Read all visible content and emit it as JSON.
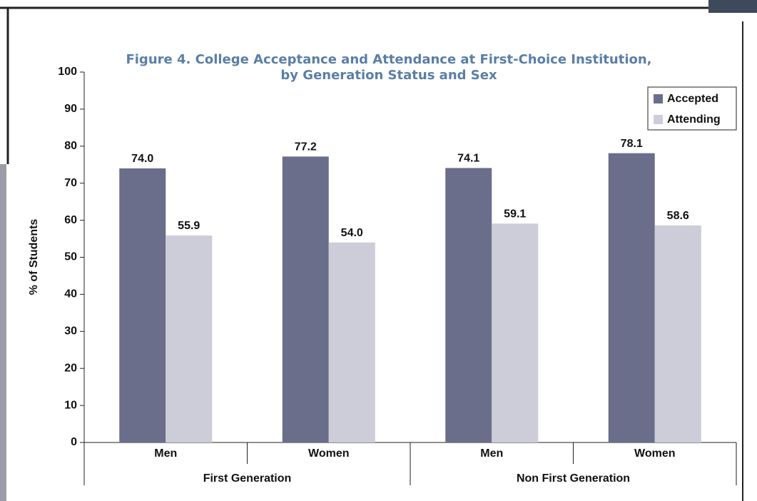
{
  "chart_data": {
    "type": "bar",
    "title": [
      "Figure 4. College Acceptance and Attendance at First-Choice Institution,",
      "by Generation Status and Sex"
    ],
    "ylabel": "% of Students",
    "categories": [
      "Men",
      "Women",
      "Men",
      "Women"
    ],
    "groups": [
      "First Generation",
      "Non First Generation"
    ],
    "series": [
      {
        "name": "Accepted",
        "color": "#6b6e8a",
        "values": [
          74.0,
          77.2,
          74.1,
          78.1
        ],
        "value_labels": [
          "74.0",
          "77.2",
          "74.1",
          "78.1"
        ]
      },
      {
        "name": "Attending",
        "color": "#cdcdd9",
        "values": [
          55.9,
          54.0,
          59.1,
          58.6
        ],
        "value_labels": [
          "55.9",
          "54.0",
          "59.1",
          "58.6"
        ]
      }
    ],
    "ylim": [
      0,
      100
    ],
    "yticks": [
      0,
      10,
      20,
      30,
      40,
      50,
      60,
      70,
      80,
      90,
      100
    ],
    "grid": false,
    "legend": "upper right"
  }
}
